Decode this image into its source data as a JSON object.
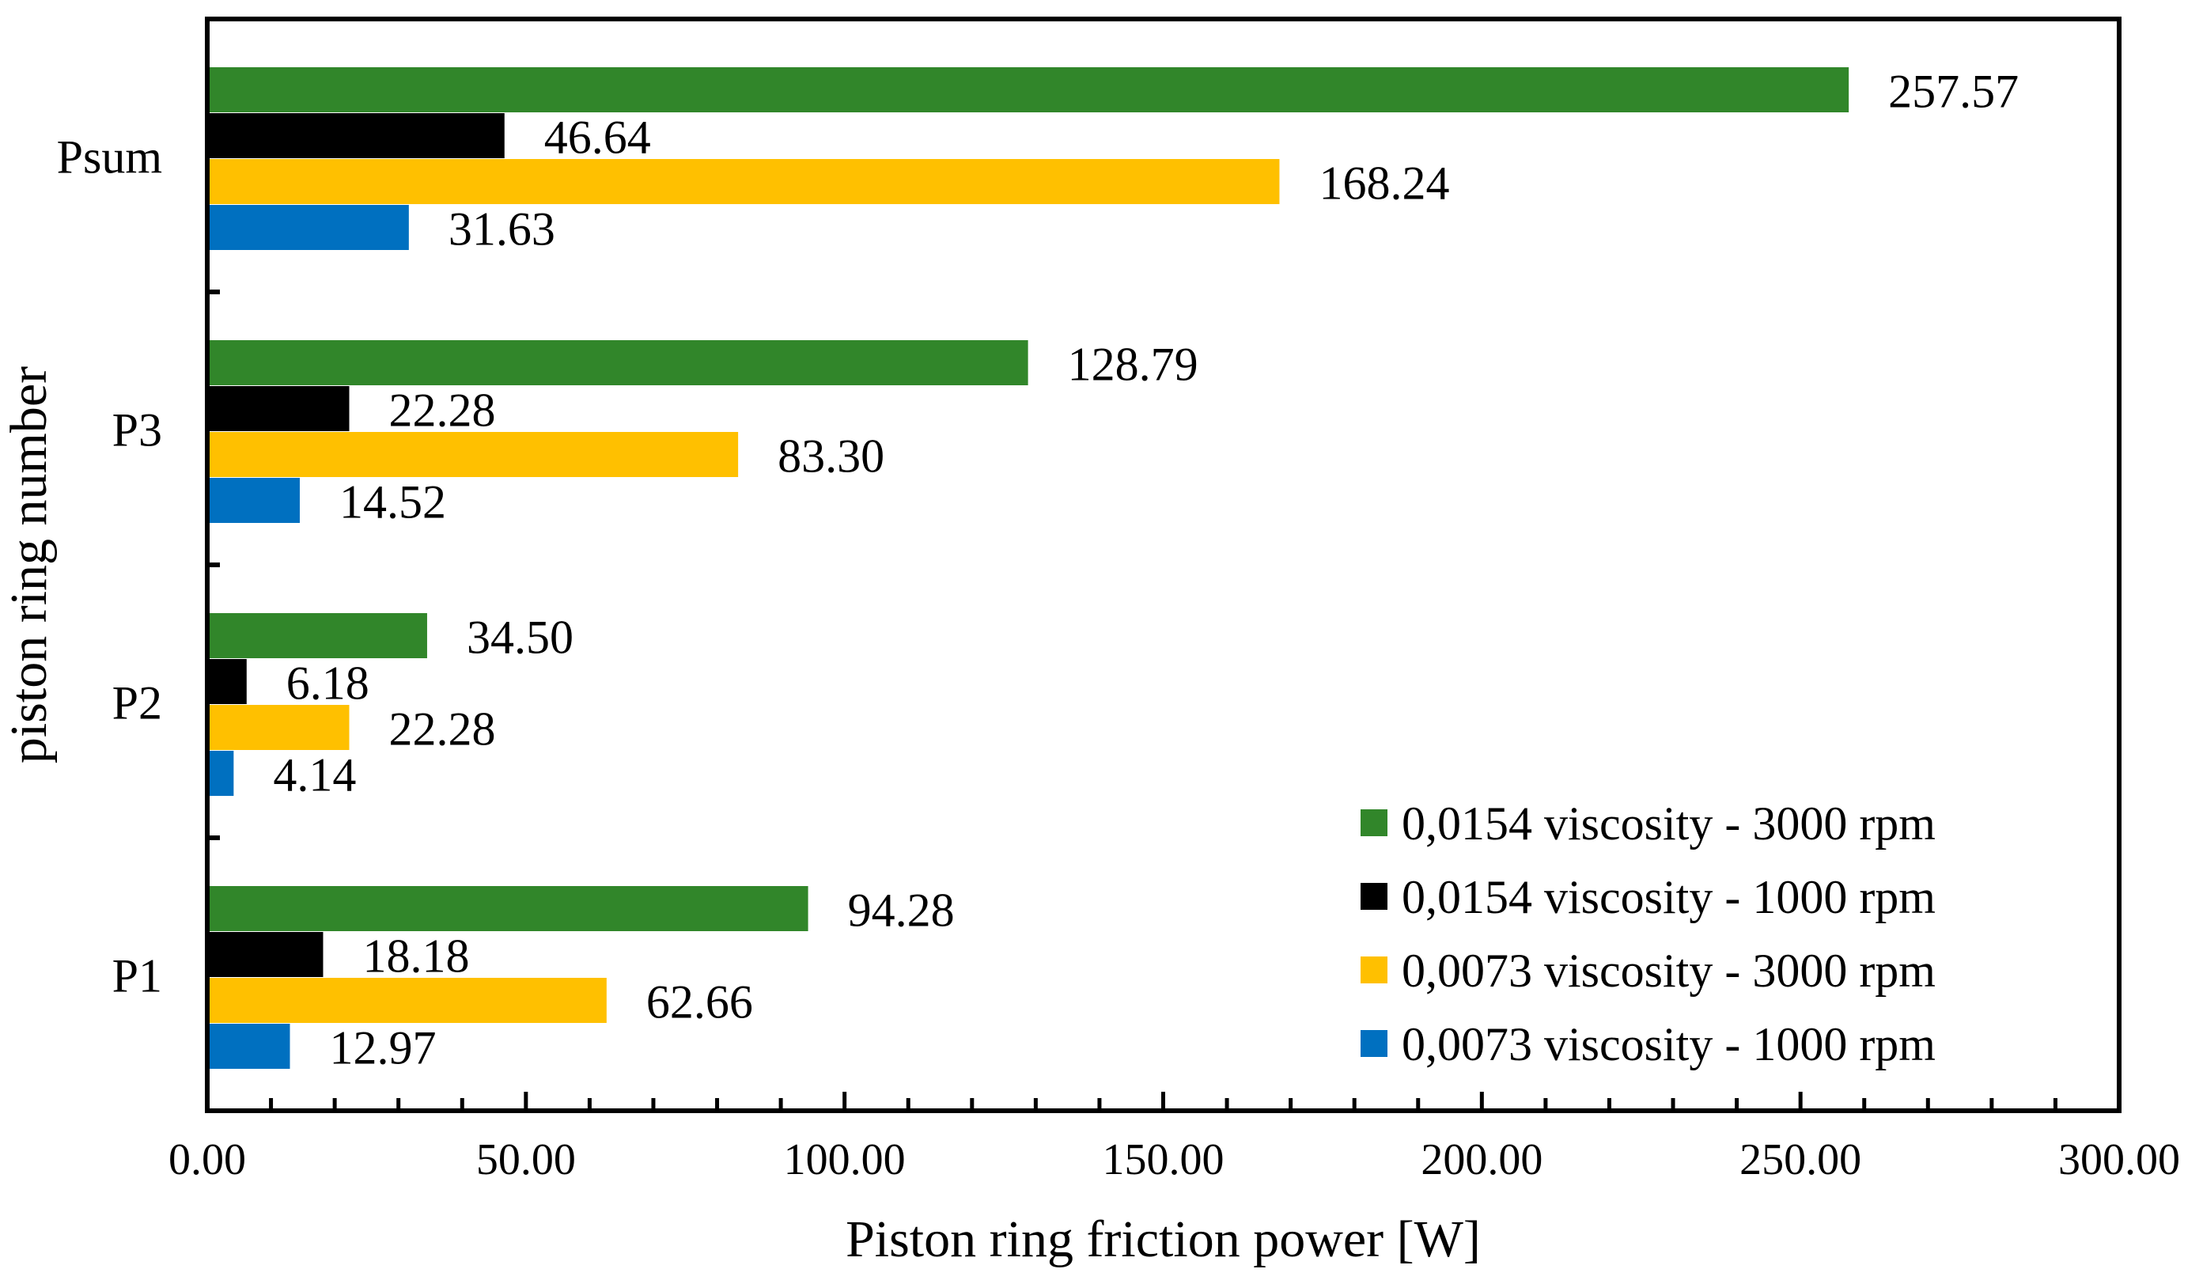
{
  "chart_data": {
    "type": "bar",
    "orientation": "horizontal",
    "xlabel": "Piston ring friction power [W]",
    "ylabel": "piston ring number",
    "xlim": [
      0,
      300
    ],
    "x_tick_labels": [
      "0.00",
      "50.00",
      "100.00",
      "150.00",
      "200.00",
      "250.00",
      "300.00"
    ],
    "x_ticks": [
      0,
      50,
      100,
      150,
      200,
      250,
      300
    ],
    "categories": [
      "P1",
      "P2",
      "P3",
      "Psum"
    ],
    "series": [
      {
        "name": "0,0154 viscosity - 3000 rpm",
        "color": "#31862a",
        "values": [
          94.28,
          34.5,
          128.79,
          257.57
        ],
        "labels": [
          "94.28",
          "34.50",
          "128.79",
          "257.57"
        ]
      },
      {
        "name": "0,0154 viscosity - 1000 rpm",
        "color": "#000000",
        "values": [
          18.18,
          6.18,
          22.28,
          46.64
        ],
        "labels": [
          "18.18",
          "6.18",
          "22.28",
          "46.64"
        ]
      },
      {
        "name": "0,0073 viscosity - 3000 rpm",
        "color": "#ffc000",
        "values": [
          62.66,
          22.28,
          83.3,
          168.24
        ],
        "labels": [
          "62.66",
          "22.28",
          "83.30",
          "168.24"
        ]
      },
      {
        "name": "0,0073 viscosity - 1000 rpm",
        "color": "#0070c0",
        "values": [
          12.97,
          4.14,
          14.52,
          31.63
        ],
        "labels": [
          "12.97",
          "4.14",
          "14.52",
          "31.63"
        ]
      }
    ],
    "grid": false,
    "legend_position": "bottom-right"
  }
}
